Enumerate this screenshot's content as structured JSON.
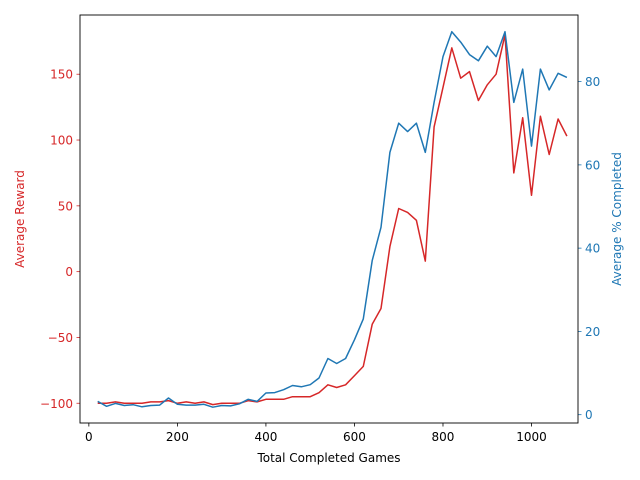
{
  "chart_data": {
    "type": "line",
    "xlabel": "Total Completed Games",
    "ylabel_left": "Average Reward",
    "ylabel_right": "Average % Completed",
    "xlim": [
      -20,
      1105
    ],
    "ylim_left": [
      -115,
      195
    ],
    "ylim_right": [
      -2,
      96
    ],
    "xticks": [
      0,
      200,
      400,
      600,
      800,
      1000
    ],
    "xtick_labels": [
      "0",
      "200",
      "400",
      "600",
      "800",
      "1000"
    ],
    "yticks_left": [
      -100,
      -50,
      0,
      50,
      100,
      150
    ],
    "ytick_labels_left": [
      "−100",
      "−50",
      "0",
      "50",
      "100",
      "150"
    ],
    "yticks_right": [
      0,
      20,
      40,
      60,
      80
    ],
    "ytick_labels_right": [
      "0",
      "20",
      "40",
      "60",
      "80"
    ],
    "grid": false,
    "colors": {
      "left": "#d62728",
      "right": "#1f77b4",
      "axis": "#000000"
    },
    "x": [
      20,
      40,
      60,
      80,
      100,
      120,
      140,
      160,
      180,
      200,
      220,
      240,
      260,
      280,
      300,
      320,
      340,
      360,
      380,
      400,
      420,
      440,
      460,
      480,
      500,
      520,
      540,
      560,
      580,
      600,
      620,
      640,
      660,
      680,
      700,
      720,
      740,
      760,
      780,
      800,
      820,
      840,
      860,
      880,
      900,
      920,
      940,
      960,
      980,
      1000,
      1020,
      1040,
      1060,
      1080
    ],
    "series": [
      {
        "axis": "left",
        "color": "#d62728",
        "values": [
          -100,
          -100,
          -99,
          -100,
          -100,
          -100,
          -99,
          -99,
          -98,
          -100,
          -99,
          -100,
          -99,
          -101,
          -100,
          -100,
          -100,
          -98,
          -99,
          -97,
          -97,
          -97,
          -95,
          -95,
          -95,
          -92,
          -86,
          -88,
          -86,
          -79,
          -72,
          -40,
          -28,
          19,
          48,
          45,
          39,
          8,
          110,
          140,
          170,
          147,
          152,
          130,
          142,
          150,
          180,
          75,
          117,
          58,
          118,
          89,
          116,
          103
        ]
      },
      {
        "axis": "right",
        "color": "#1f77b4",
        "values": [
          3.2,
          2.0,
          2.7,
          2.2,
          2.4,
          1.9,
          2.2,
          2.3,
          4.0,
          2.5,
          2.3,
          2.3,
          2.5,
          1.8,
          2.2,
          2.1,
          2.6,
          3.7,
          3.2,
          5.2,
          5.3,
          6.0,
          7.0,
          6.7,
          7.2,
          8.8,
          13.5,
          12.3,
          13.5,
          18.0,
          23.0,
          37.0,
          45.0,
          63.0,
          70.0,
          68.0,
          70.0,
          63.0,
          75.0,
          86.0,
          92.0,
          89.5,
          86.5,
          85.0,
          88.5,
          86.0,
          92.0,
          75.0,
          83.0,
          64.5,
          83.0,
          78.0,
          82.0,
          81.0
        ]
      }
    ]
  }
}
